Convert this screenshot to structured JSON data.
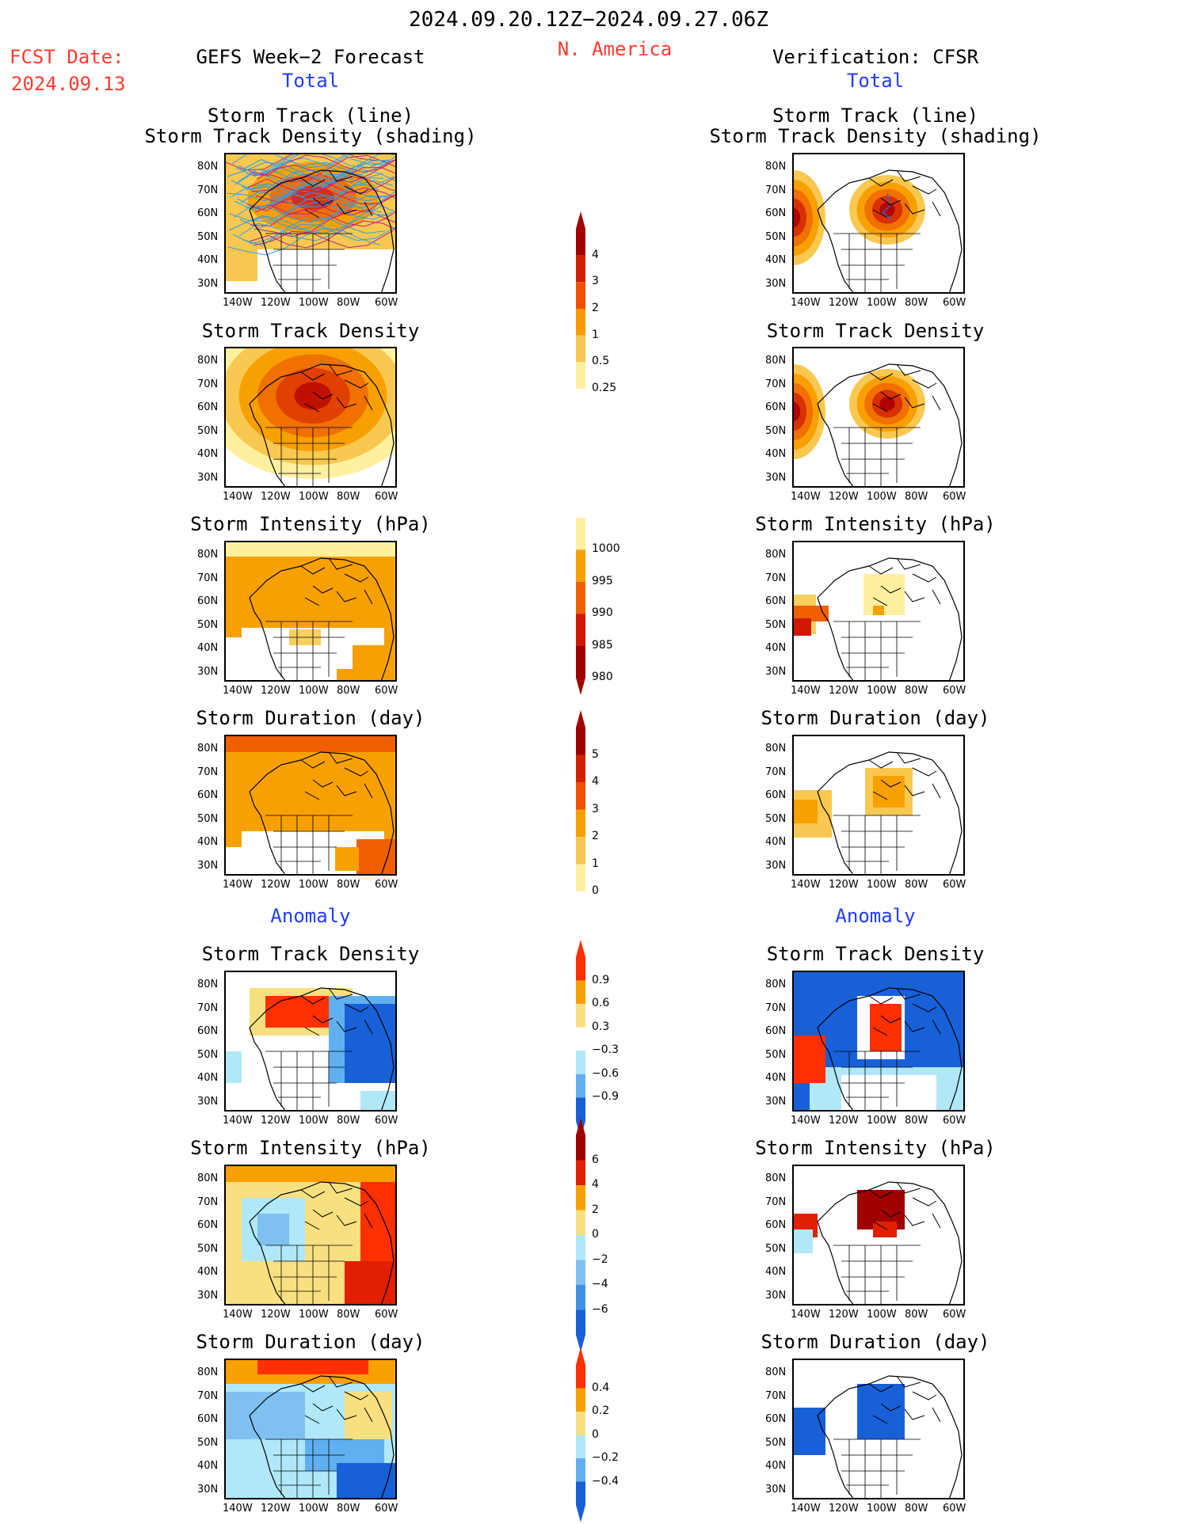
{
  "header": {
    "date_range": "2024.09.20.12Z−2024.09.27.06Z",
    "region": "N. America",
    "fcst_label": "FCST Date:",
    "fcst_date": "2024.09.13",
    "left_title": "GEFS Week−2 Forecast",
    "right_title": "Verification: CFSR",
    "total_label": "Total",
    "anomaly_label": "Anomaly"
  },
  "panel_titles": {
    "track_line": "Storm Track (line)",
    "track_shading": "Storm Track Density (shading)",
    "density": "Storm Track Density",
    "intensity": "Storm Intensity (hPa)",
    "duration": "Storm Duration (day)"
  },
  "axes": {
    "lat_labels": [
      "80N",
      "70N",
      "60N",
      "50N",
      "40N",
      "30N"
    ],
    "lon_labels": [
      "140W",
      "120W",
      "100W",
      "80W",
      "60W"
    ]
  },
  "colorbars": {
    "density_total": {
      "labels": [
        "4",
        "3",
        "2",
        "1",
        "0.5",
        "0.25"
      ],
      "colors": [
        "#a50000",
        "#d42000",
        "#f05000",
        "#f89a00",
        "#f8c850",
        "#fff0a0"
      ]
    },
    "intensity_total": {
      "labels": [
        "1000",
        "995",
        "990",
        "985",
        "980"
      ],
      "colors": [
        "#fff0a0",
        "#f8a000",
        "#f06000",
        "#d01800",
        "#a00000"
      ]
    },
    "duration_total": {
      "labels": [
        "5",
        "4",
        "3",
        "2",
        "1",
        "0"
      ],
      "colors": [
        "#a00000",
        "#d42000",
        "#f05000",
        "#f8a000",
        "#f8c850",
        "#fff0a0"
      ]
    },
    "density_anom": {
      "labels": [
        "0.9",
        "0.6",
        "0.3",
        "−0.3",
        "−0.6",
        "−0.9"
      ],
      "colors": [
        "#ff3000",
        "#f8a000",
        "#f8e080",
        "#ffffff",
        "#b0e8f8",
        "#60b0f0",
        "#1860d8"
      ]
    },
    "intensity_anom": {
      "labels": [
        "6",
        "4",
        "2",
        "0",
        "−2",
        "−4",
        "−6"
      ],
      "colors": [
        "#a00000",
        "#e02000",
        "#f8a000",
        "#f8e080",
        "#b0e8f8",
        "#80c0f0",
        "#4090e8",
        "#1860d8"
      ]
    },
    "duration_anom": {
      "labels": [
        "0.4",
        "0.2",
        "0",
        "−0.2",
        "−0.4"
      ],
      "colors": [
        "#ff3000",
        "#f8a000",
        "#f8e080",
        "#b0e8f8",
        "#60b0f0",
        "#1860d8"
      ]
    }
  },
  "legend_colors": {
    "track_line": "#2f9fe8",
    "track_line_dense": "#c02080"
  }
}
